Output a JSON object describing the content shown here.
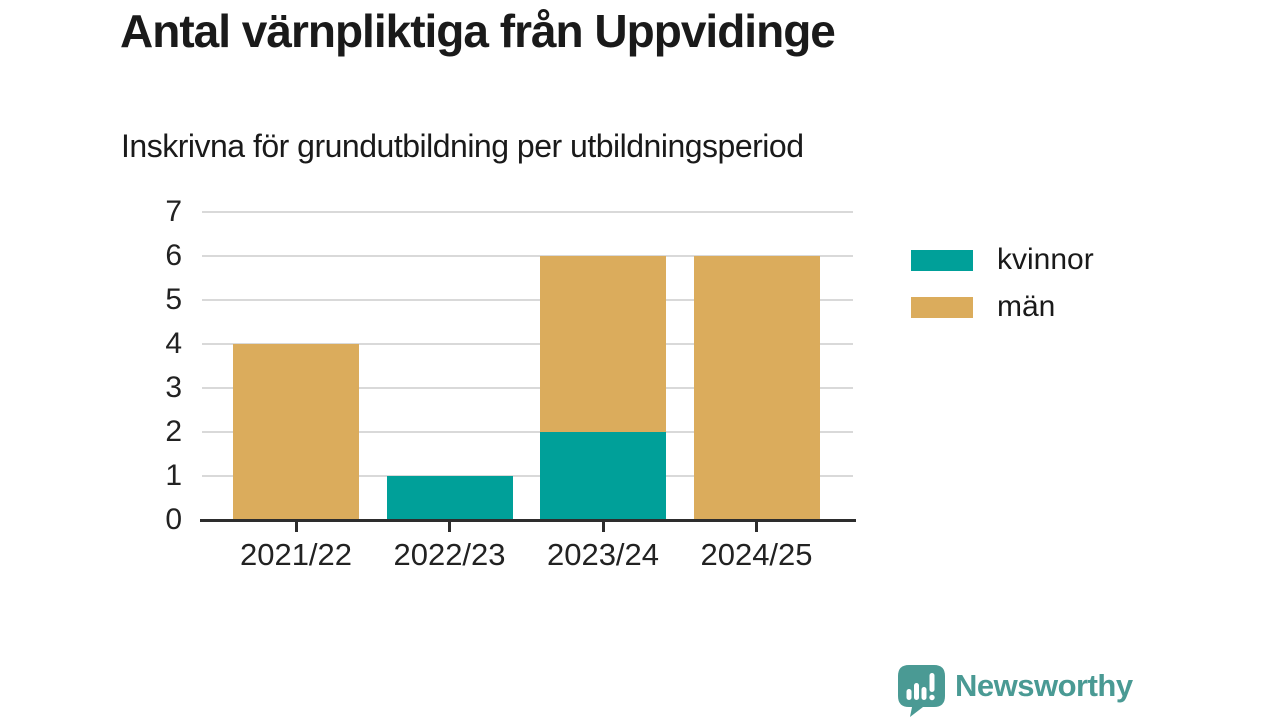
{
  "header": {
    "title": "Antal värnpliktiga från Uppvidinge",
    "subtitle": "Inskrivna för grundutbildning per utbildningsperiod"
  },
  "chart_data": {
    "type": "bar",
    "stacked": true,
    "title": "Antal värnpliktiga från Uppvidinge",
    "subtitle": "Inskrivna för grundutbildning per utbildningsperiod",
    "categories": [
      "2021/22",
      "2022/23",
      "2023/24",
      "2024/25"
    ],
    "series": [
      {
        "name": "kvinnor",
        "color": "#00a099",
        "values": [
          0,
          1,
          2,
          0
        ]
      },
      {
        "name": "män",
        "color": "#dbac5c",
        "values": [
          4,
          0,
          4,
          6
        ]
      }
    ],
    "totals": [
      4,
      1,
      6,
      6
    ],
    "xlabel": "",
    "ylabel": "",
    "ylim": [
      0,
      7
    ],
    "yticks": [
      0,
      1,
      2,
      3,
      4,
      5,
      6,
      7
    ],
    "grid": true,
    "legend_position": "right"
  },
  "legend": {
    "items": [
      {
        "label": "kvinnor",
        "color": "#00a099"
      },
      {
        "label": "män",
        "color": "#dbac5c"
      }
    ]
  },
  "footer": {
    "brand": "Newsworthy"
  },
  "colors": {
    "axis": "#2d2d2d",
    "grid": "#d9d9d9",
    "title_text": "#1a1a1a",
    "tick_text": "#222222",
    "brand": "#4a9a94",
    "kvinnor": "#00a099",
    "man": "#dbac5c"
  }
}
